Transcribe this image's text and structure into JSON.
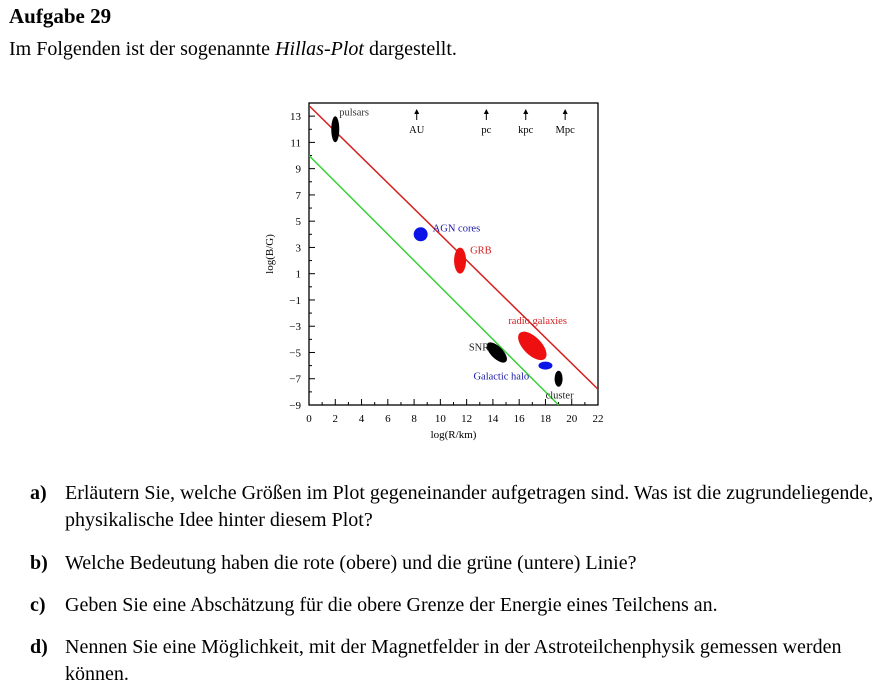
{
  "heading": "Aufgabe 29",
  "intro": {
    "pre": "Im Folgenden ist der sogenannte ",
    "em": "Hillas-Plot",
    "post": " dargestellt."
  },
  "chart_data": {
    "type": "scatter",
    "xlabel": "log(R/km)",
    "ylabel": "log(B/G)",
    "xlim": [
      0,
      22
    ],
    "ylim": [
      -9,
      14
    ],
    "xticks": [
      0,
      2,
      4,
      6,
      8,
      10,
      12,
      14,
      16,
      18,
      20,
      22
    ],
    "yticks": [
      -9,
      -7,
      -5,
      -3,
      -1,
      1,
      3,
      5,
      7,
      9,
      11,
      13
    ],
    "lines": [
      {
        "color": "#d62020",
        "x": [
          0,
          22
        ],
        "y": [
          13.8,
          -7.8
        ]
      },
      {
        "color": "#3cd03c",
        "x": [
          0,
          19
        ],
        "y": [
          10,
          -9
        ]
      }
    ],
    "scale_markers": [
      {
        "label": "AU",
        "x": 8.2
      },
      {
        "label": "pc",
        "x": 13.5
      },
      {
        "label": "kpc",
        "x": 16.5
      },
      {
        "label": "Mpc",
        "x": 19.5
      }
    ],
    "objects": [
      {
        "label": "pulsars",
        "x": 2.0,
        "y": 12.0,
        "color": "#000000",
        "label_color": "#333333"
      },
      {
        "label": "AGN cores",
        "x": 8.5,
        "y": 4.0,
        "color": "#0a14e6",
        "label_color": "#1a1aa8"
      },
      {
        "label": "GRB",
        "x": 11.5,
        "y": 2.0,
        "color": "#ee1010",
        "label_color": "#d62020"
      },
      {
        "label": "radio galaxies",
        "x": 17.0,
        "y": -4.5,
        "color": "#ee1010",
        "label_color": "#d62020"
      },
      {
        "label": "SNR",
        "x": 14.3,
        "y": -5.0,
        "color": "#000000",
        "label_color": "#222222"
      },
      {
        "label": "Galactic halo",
        "x": 18.0,
        "y": -6.0,
        "color": "#0a14e6",
        "label_color": "#1a1aa8"
      },
      {
        "label": "cluster",
        "x": 19.0,
        "y": -7.0,
        "color": "#000000",
        "label_color": "#222222"
      }
    ]
  },
  "questions": [
    {
      "label": "a)",
      "text": "Erläutern Sie, welche Größen im Plot gegeneinander aufgetragen sind. Was ist die zugrundeliegende, physikalische Idee hinter diesem Plot?"
    },
    {
      "label": "b)",
      "text": "Welche Bedeutung haben die rote (obere) und die grüne (untere) Linie?"
    },
    {
      "label": "c)",
      "text": "Geben Sie eine Abschätzung für die obere Grenze der Energie eines Teilchens an."
    },
    {
      "label": "d)",
      "text": "Nennen Sie eine Möglichkeit, mit der Magnetfelder in der Astroteilchenphysik gemessen werden können."
    }
  ]
}
